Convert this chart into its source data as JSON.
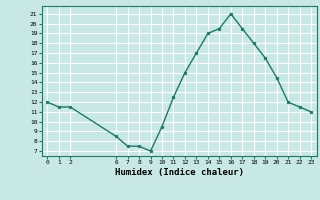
{
  "x": [
    0,
    1,
    2,
    6,
    7,
    8,
    9,
    10,
    11,
    12,
    13,
    14,
    15,
    16,
    17,
    18,
    19,
    20,
    21,
    22,
    23
  ],
  "y": [
    12,
    11.5,
    11.5,
    8.5,
    7.5,
    7.5,
    7,
    9.5,
    12.5,
    15,
    17,
    19,
    19.5,
    21,
    19.5,
    18,
    16.5,
    14.5,
    12,
    11.5,
    11
  ],
  "line_color": "#1a7a6e",
  "bg_color": "#c8e8e5",
  "grid_color": "#ffffff",
  "xlabel": "Humidex (Indice chaleur)",
  "xlim": [
    -0.5,
    23.5
  ],
  "ylim": [
    6.5,
    21.8
  ],
  "xticks": [
    0,
    1,
    2,
    6,
    7,
    8,
    9,
    10,
    11,
    12,
    13,
    14,
    15,
    16,
    17,
    18,
    19,
    20,
    21,
    22,
    23
  ],
  "yticks": [
    7,
    8,
    9,
    10,
    11,
    12,
    13,
    14,
    15,
    16,
    17,
    18,
    19,
    20,
    21
  ]
}
